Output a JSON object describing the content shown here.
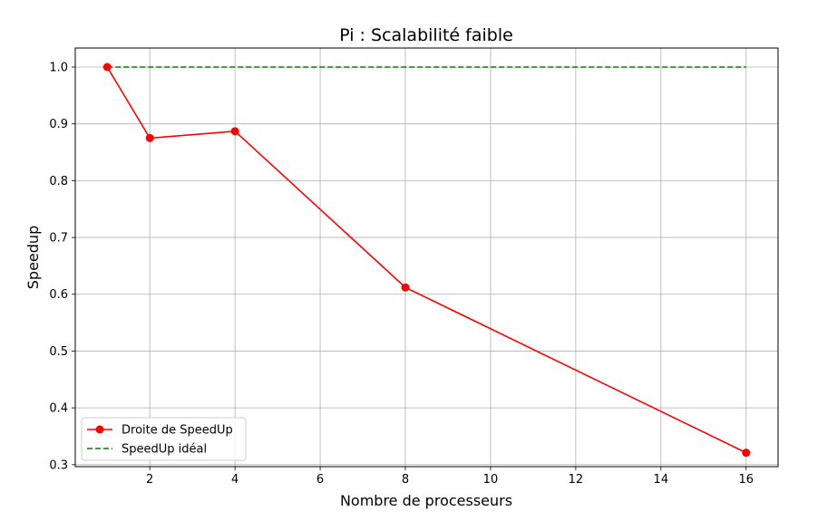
{
  "chart_data": {
    "type": "line",
    "title": "Pi : Scalabilité faible",
    "xlabel": "Nombre de processeurs",
    "ylabel": "Speedup",
    "xlim": [
      0.25,
      16.75
    ],
    "ylim": [
      0.2965,
      1.0335
    ],
    "x_ticks": [
      2,
      4,
      6,
      8,
      10,
      12,
      14,
      16
    ],
    "y_ticks": [
      0.3,
      0.4,
      0.5,
      0.6,
      0.7,
      0.8,
      0.9,
      1.0
    ],
    "x_tick_labels": [
      "2",
      "4",
      "6",
      "8",
      "10",
      "12",
      "14",
      "16"
    ],
    "y_tick_labels": [
      "0.3",
      "0.4",
      "0.5",
      "0.6",
      "0.7",
      "0.8",
      "0.9",
      "1.0"
    ],
    "grid": true,
    "legend_position": "lower-left",
    "series": [
      {
        "name": "Droite de SpeedUp",
        "color": "#ff0000",
        "style": "solid",
        "marker": "circle",
        "x": [
          1,
          2,
          4,
          8,
          16
        ],
        "y": [
          1.0,
          0.875,
          0.887,
          0.612,
          0.321
        ]
      },
      {
        "name": "SpeedUp idéal",
        "color": "#008000",
        "style": "dashed",
        "marker": "none",
        "x": [
          1,
          16
        ],
        "y": [
          1.0,
          1.0
        ]
      }
    ]
  }
}
